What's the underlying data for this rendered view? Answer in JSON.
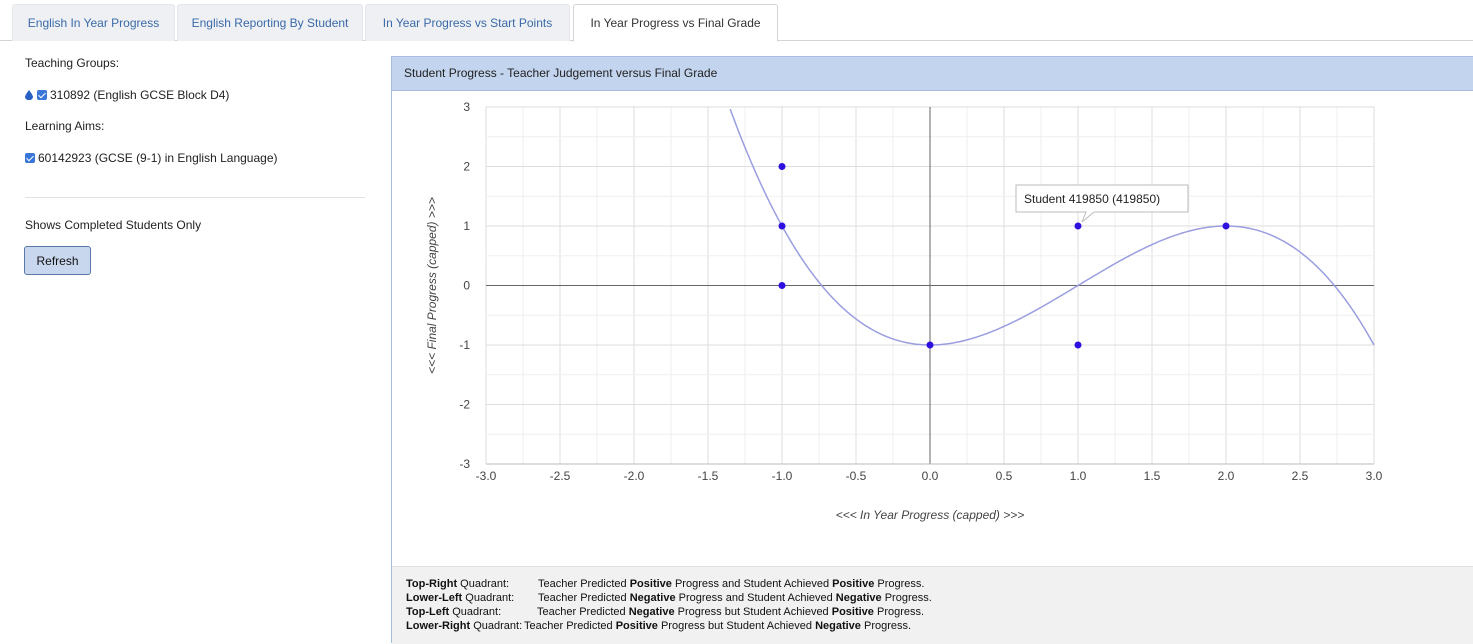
{
  "tabs": [
    {
      "label": "English In Year Progress",
      "active": false
    },
    {
      "label": "English Reporting By Student",
      "active": false
    },
    {
      "label": "In Year Progress vs Start Points",
      "active": false
    },
    {
      "label": "In Year Progress vs Final Grade",
      "active": true
    }
  ],
  "left": {
    "teaching_groups_label": "Teaching Groups:",
    "teaching_group_item": "310892 (English GCSE Block D4)",
    "learning_aims_label": "Learning Aims:",
    "learning_aim_item": "60142923 (GCSE (9-1) in English Language)",
    "completed_note": "Shows Completed Students Only",
    "refresh_label": "Refresh"
  },
  "panel": {
    "title": "Student Progress - Teacher Judgement versus Final Grade"
  },
  "tooltip": {
    "text": "Student 419850 (419850)"
  },
  "legend": [
    {
      "bold": "Top-Right",
      "suffix": " Quadrant:",
      "pre": "Teacher Predicted ",
      "b1": "Positive",
      "mid": " Progress and Student Achieved ",
      "b2": "Positive",
      "end": " Progress."
    },
    {
      "bold": "Lower-Left",
      "suffix": " Quadrant:",
      "pre": "Teacher Predicted ",
      "b1": "Negative",
      "mid": " Progress and Student Achieved ",
      "b2": "Negative",
      "end": " Progress."
    },
    {
      "bold": "Top-Left",
      "suffix": " Quadrant:",
      "pre": "Teacher Predicted ",
      "b1": "Negative",
      "mid": " Progress but Student Achieved ",
      "b2": "Positive",
      "end": " Progress."
    },
    {
      "bold": "Lower-Right",
      "suffix": " Quadrant:",
      "pre": "Teacher Predicted ",
      "b1": "Positive",
      "mid": " Progress but Student Achieved ",
      "b2": "Negative",
      "end": " Progress."
    }
  ],
  "colors": {
    "point": "#2d10e0",
    "trend": "#9a9ee0",
    "tab_text": "#3b6aa8",
    "panel_header": "#c2d4ee"
  },
  "chart_data": {
    "type": "scatter",
    "title": "",
    "xlabel": "<<< In Year Progress (capped) >>>",
    "ylabel": "<<< Final Progress (capped) >>>",
    "xlim": [
      -3,
      3
    ],
    "ylim": [
      -3,
      3
    ],
    "x_ticks": [
      "-3.0",
      "-2.5",
      "-2.0",
      "-1.5",
      "-1.0",
      "-0.5",
      "0.0",
      "0.5",
      "1.0",
      "1.5",
      "2.0",
      "2.5",
      "3.0"
    ],
    "y_ticks": [
      "3",
      "2",
      "1",
      "0",
      "-1",
      "-2",
      "-3"
    ],
    "grid": true,
    "points": [
      {
        "x": -1,
        "y": 2
      },
      {
        "x": -1,
        "y": 1
      },
      {
        "x": -1,
        "y": 0
      },
      {
        "x": 0,
        "y": -1
      },
      {
        "x": 1,
        "y": 1
      },
      {
        "x": 1,
        "y": -1
      },
      {
        "x": 2,
        "y": 1
      }
    ],
    "trendline": {
      "type": "polynomial",
      "degree": 3,
      "x_range": [
        -1.4,
        3.0
      ]
    }
  }
}
